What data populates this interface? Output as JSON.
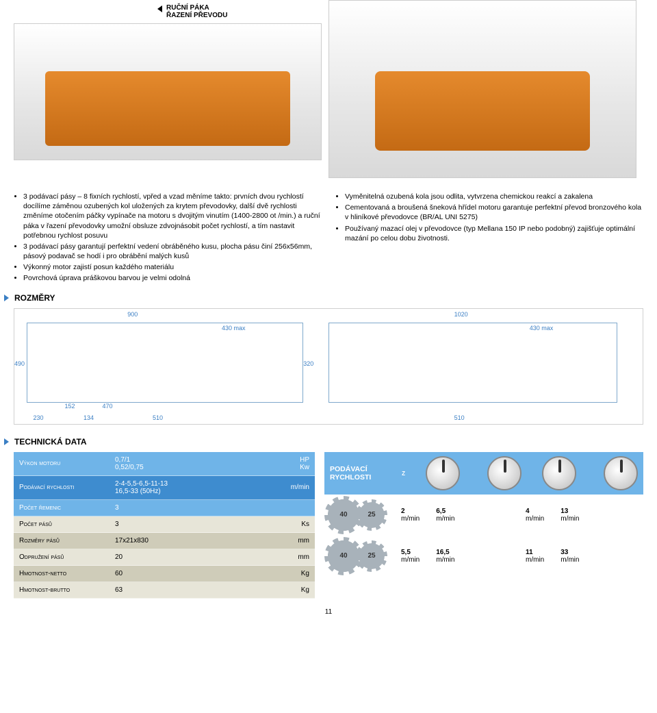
{
  "caption": {
    "line1": "RUČNÍ PÁKA",
    "line2": "ŘAZENÍ PŘEVODU"
  },
  "bullets": {
    "left": [
      "3 podávací pásy – 8 fixních rychlostí, vpřed a vzad měníme takto: prvních dvou rychlostí docílíme záměnou ozubených kol uložených za krytem převodovky, další dvě rychlosti změníme otočením páčky vypínače na motoru s dvojitým vinutím (1400-2800 ot /min.) a ruční páka v řazení převodovky umožní obsluze zdvojnásobit počet rychlostí, a tím nastavit potřebnou rychlost posuvu",
      "3 podávací pásy garantují perfektní vedení obráběného kusu, plocha pásu činí 256x56mm, pásový podavač se hodí i pro obrábění malých kusů",
      "Výkonný motor zajistí posun každého materiálu",
      "Povrchová úprava práškovou barvou je velmi odolná"
    ],
    "right": [
      "Vyměnitelná ozubená kola jsou odlita, vytvrzena chemickou reakcí a zakalena",
      "Cementovaná a broušená šneková hřídel motoru garantuje perfektní převod bronzového kola v hliníkové převodovce (BR/AL UNI 5275)",
      "Používaný mazací olej v převodovce (typ Mellana 150 IP nebo podobný) zajišťuje optimální mazání po celou dobu životnosti."
    ]
  },
  "sections": {
    "rozmery": "ROZMĚRY",
    "techdata": "TECHNICKÁ DATA"
  },
  "dimensions": {
    "labels": [
      "900",
      "430 max",
      "1020",
      "430 max",
      "490",
      "510",
      "510",
      "320",
      "230",
      "152",
      "470",
      "134"
    ]
  },
  "tech_rows": [
    {
      "label": "Výkon motoru",
      "val": "0,7/1\n0,52/0,75",
      "unit": "HP\nKw",
      "bg": "#6fb4e8",
      "fg": "#ffffff"
    },
    {
      "label": "Podávací rychlosti",
      "val": "2-4-5,5-6,5-11-13\n16,5-33 (50Hz)",
      "unit": "m/min",
      "bg": "#3e8ccf",
      "fg": "#ffffff"
    },
    {
      "label": "Počet řemenic",
      "val": "3",
      "unit": "",
      "bg": "#6fb4e8",
      "fg": "#ffffff"
    },
    {
      "label": "Počet pásů",
      "val": "3",
      "unit": "Ks",
      "bg": "#e7e5d8",
      "fg": "#000000"
    },
    {
      "label": "Rozměry pásů",
      "val": "17x21x830",
      "unit": "mm",
      "bg": "#cfccb9",
      "fg": "#000000"
    },
    {
      "label": "Odpružení pásů",
      "val": "20",
      "unit": "mm",
      "bg": "#e7e5d8",
      "fg": "#000000"
    },
    {
      "label": "Hmotnost-netto",
      "val": "60",
      "unit": "Kg",
      "bg": "#cfccb9",
      "fg": "#000000"
    },
    {
      "label": "Hmotnost-brutto",
      "val": "63",
      "unit": "Kg",
      "bg": "#e7e5d8",
      "fg": "#000000"
    }
  ],
  "speed_panel": {
    "title": "PODÁVACÍ RYCHLOSTI",
    "z": "z",
    "dial_positions": [
      "1",
      "2"
    ],
    "rows": [
      {
        "big": "40",
        "small": "25",
        "speeds": [
          {
            "n": "2",
            "u": "m/min"
          },
          {
            "n": "6,5",
            "u": "m/min"
          },
          {
            "n": "4",
            "u": "m/min"
          },
          {
            "n": "13",
            "u": "m/min"
          }
        ]
      },
      {
        "big": "40",
        "small": "25",
        "speeds": [
          {
            "n": "5,5",
            "u": "m/min"
          },
          {
            "n": "16,5",
            "u": "m/min"
          },
          {
            "n": "11",
            "u": "m/min"
          },
          {
            "n": "33",
            "u": "m/min"
          }
        ]
      }
    ]
  },
  "page_number": "11"
}
